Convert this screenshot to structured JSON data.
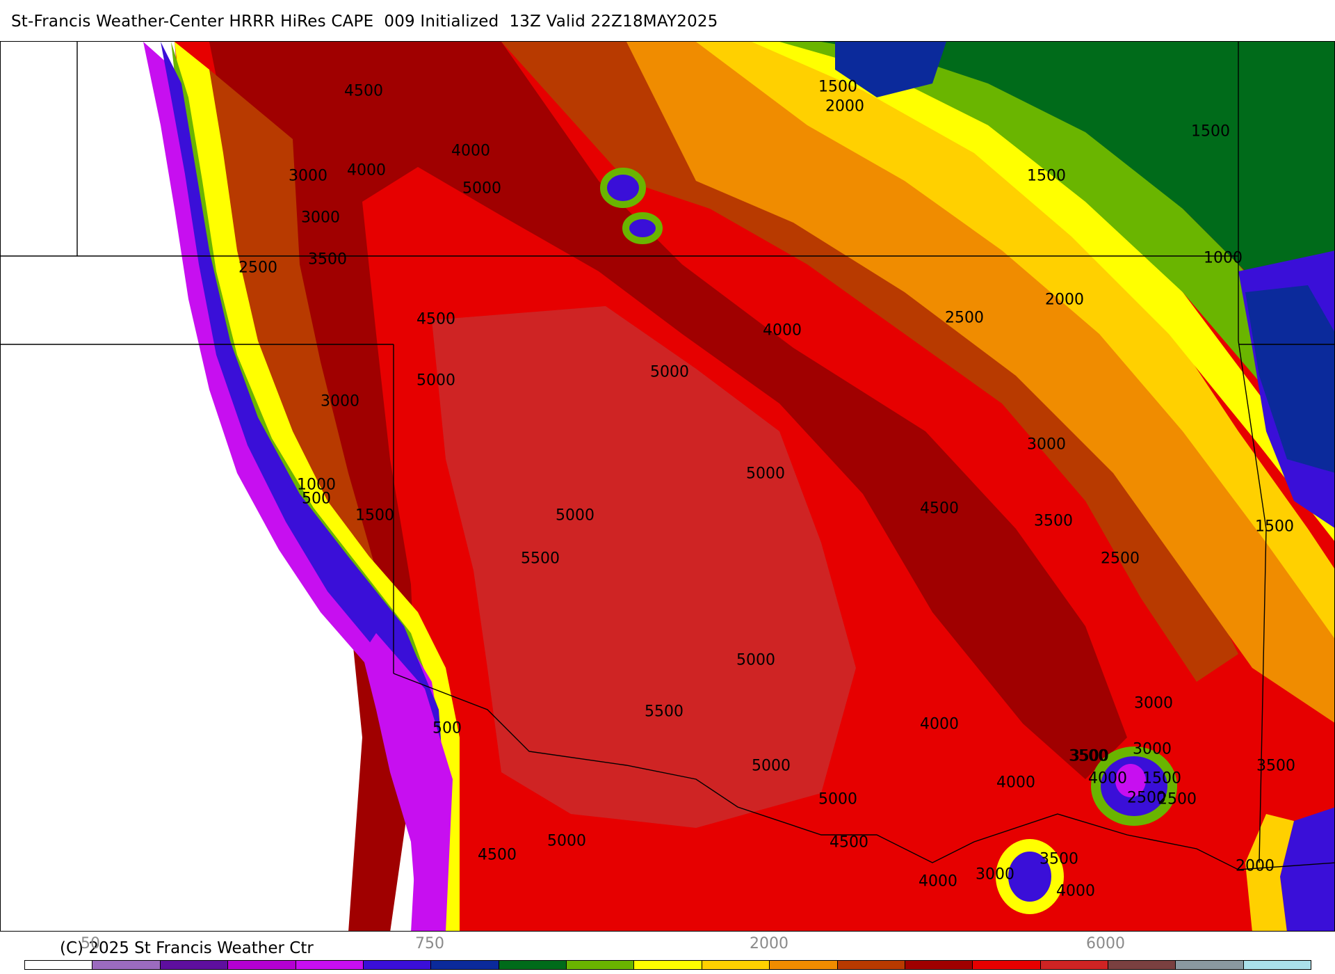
{
  "header": {
    "title": "St-Francis Weather-Center HRRR HiRes CAPE  009 Initialized  13Z Valid 22Z18MAY2025"
  },
  "footer": {
    "copyright": "(C) 2025 St Francis Weather Ctr"
  },
  "colorbar": {
    "tick_labels": [
      "50",
      "750",
      "2000",
      "6000"
    ],
    "colors": [
      "#ffffff",
      "#9b6bbf",
      "#5e0f9e",
      "#b400d2",
      "#c70ff0",
      "#3a0fd8",
      "#0b2a9b",
      "#006b1a",
      "#6ab500",
      "#ffff00",
      "#ffd000",
      "#f08c00",
      "#b83a00",
      "#a00000",
      "#e60000",
      "#cf2424",
      "#7a4040",
      "#8a98a0",
      "#aae0ea"
    ]
  },
  "map": {
    "contour_labels": [
      "4500",
      "4000",
      "3000",
      "4000",
      "5000",
      "3000",
      "3500",
      "2500",
      "4500",
      "5000",
      "3000",
      "1000",
      "500",
      "1500",
      "500",
      "4500",
      "5000",
      "5000",
      "5000",
      "5500",
      "5000",
      "5500",
      "5000",
      "5000",
      "5000",
      "4500",
      "4000",
      "4000",
      "4500",
      "2500",
      "3000",
      "3500",
      "4000",
      "1500",
      "2000",
      "1500",
      "1500",
      "2000",
      "2500",
      "3000",
      "3500",
      "2500",
      "1000",
      "1500",
      "3000",
      "3500",
      "4000",
      "1500",
      "2500",
      "3500",
      "4000",
      "3000",
      "3500",
      "4000",
      "2000"
    ]
  }
}
